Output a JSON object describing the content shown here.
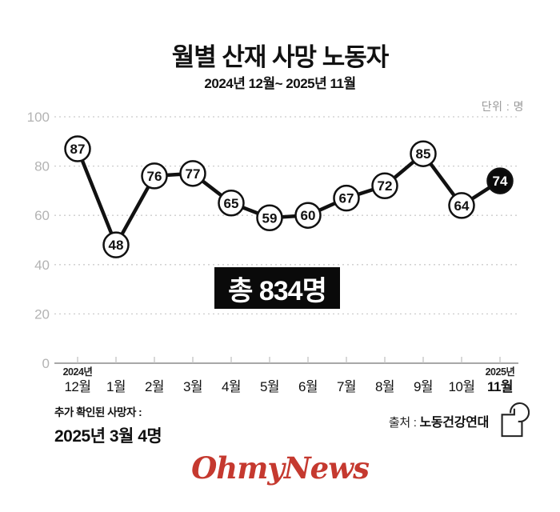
{
  "header": {
    "title": "월별 산재 사망 노동자",
    "subtitle": "2024년 12월~ 2025년 11월",
    "unit_label": "단위 : 명"
  },
  "chart_data": {
    "type": "line",
    "title": "월별 산재 사망 노동자",
    "categories": [
      "12월",
      "1월",
      "2월",
      "3월",
      "4월",
      "5월",
      "6월",
      "7월",
      "8월",
      "9월",
      "10월",
      "11월"
    ],
    "values": [
      87,
      48,
      76,
      77,
      65,
      59,
      60,
      67,
      72,
      85,
      64,
      74
    ],
    "year_labels": [
      {
        "index": 0,
        "label": "2024년"
      },
      {
        "index": 11,
        "label": "2025년"
      }
    ],
    "highlight_index": 11,
    "ylim": [
      0,
      100
    ],
    "yticks": [
      0,
      20,
      40,
      60,
      80,
      100
    ],
    "grid": "dashed-horizontal",
    "legend": "none",
    "colors": {
      "line": "#111111",
      "point_fill": "#ffffff",
      "point_stroke": "#111111",
      "point_text": "#111111",
      "highlight_fill": "#0a0a0a",
      "highlight_text": "#ffffff",
      "grid": "#cccccc",
      "axis": "#8c8c8c",
      "tick": "#bdbdbd",
      "ytick_label": "#b3b3b3",
      "xtick_label": "#111111"
    }
  },
  "total_badge": {
    "label": "총 834명",
    "bg": "#0a0a0a",
    "fg": "#ffffff"
  },
  "footnote": {
    "line1": "추가 확인된 사망자 :",
    "line2": "2025년 3월 4명"
  },
  "source": {
    "prefix": "출처 : ",
    "name": "노동건강연대"
  },
  "logo": {
    "text": "OhmyNews",
    "color": "#c5392f"
  }
}
